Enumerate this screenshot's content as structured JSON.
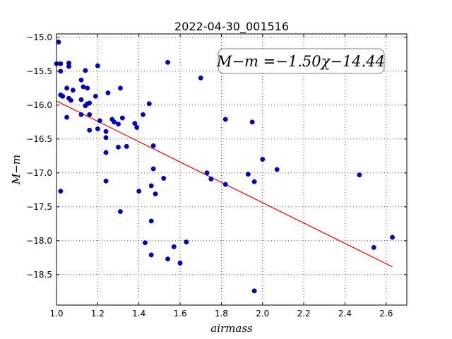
{
  "chart_data": {
    "type": "scatter",
    "title": "2022-04-30_001516",
    "xlabel": "airmass",
    "ylabel": "M−m",
    "xlim": [
      1.0,
      2.7
    ],
    "ylim": [
      -18.95,
      -14.95
    ],
    "y_inverted": true,
    "x_ticks": [
      "1.0",
      "1.2",
      "1.4",
      "1.6",
      "1.8",
      "2.0",
      "2.2",
      "2.4",
      "2.6"
    ],
    "y_ticks": [
      "−15.0",
      "−15.5",
      "−16.0",
      "−16.5",
      "−17.0",
      "−17.5",
      "−18.0",
      "−18.5"
    ],
    "grid": true,
    "annotation": "M−m =−1.50χ−14.44",
    "annotation_position": "top-right",
    "fit": {
      "slope": -1.5,
      "intercept": -14.44,
      "x_range": [
        1.0,
        2.63
      ],
      "color": "#ff0000"
    },
    "point_color": "#0000bf",
    "points": [
      [
        1.01,
        -15.07
      ],
      [
        1.0,
        -15.39
      ],
      [
        1.02,
        -15.39
      ],
      [
        1.02,
        -15.5
      ],
      [
        1.06,
        -15.38
      ],
      [
        1.06,
        -15.43
      ],
      [
        1.02,
        -15.85
      ],
      [
        1.03,
        -15.87
      ],
      [
        1.05,
        -15.75
      ],
      [
        1.06,
        -15.9
      ],
      [
        1.07,
        -15.93
      ],
      [
        1.08,
        -15.78
      ],
      [
        1.05,
        -16.18
      ],
      [
        1.02,
        -17.27
      ],
      [
        1.12,
        -15.63
      ],
      [
        1.13,
        -15.73
      ],
      [
        1.14,
        -15.49
      ],
      [
        1.15,
        -15.75
      ],
      [
        1.12,
        -15.92
      ],
      [
        1.14,
        -16.01
      ],
      [
        1.15,
        -15.98
      ],
      [
        1.16,
        -15.97
      ],
      [
        1.12,
        -16.14
      ],
      [
        1.16,
        -16.14
      ],
      [
        1.16,
        -16.37
      ],
      [
        1.19,
        -15.87
      ],
      [
        1.2,
        -15.42
      ],
      [
        1.2,
        -16.35
      ],
      [
        1.21,
        -16.23
      ],
      [
        1.25,
        -15.82
      ],
      [
        1.24,
        -16.39
      ],
      [
        1.24,
        -16.48
      ],
      [
        1.24,
        -16.7
      ],
      [
        1.24,
        -17.12
      ],
      [
        1.27,
        -16.21
      ],
      [
        1.28,
        -16.25
      ],
      [
        1.3,
        -16.28
      ],
      [
        1.31,
        -15.75
      ],
      [
        1.32,
        -16.19
      ],
      [
        1.3,
        -16.62
      ],
      [
        1.34,
        -16.61
      ],
      [
        1.31,
        -17.57
      ],
      [
        1.38,
        -16.27
      ],
      [
        1.39,
        -16.33
      ],
      [
        1.42,
        -16.14
      ],
      [
        1.45,
        -15.98
      ],
      [
        1.47,
        -16.6
      ],
      [
        1.47,
        -16.94
      ],
      [
        1.46,
        -17.19
      ],
      [
        1.48,
        -17.31
      ],
      [
        1.4,
        -17.27
      ],
      [
        1.46,
        -17.71
      ],
      [
        1.43,
        -18.03
      ],
      [
        1.46,
        -18.21
      ],
      [
        1.52,
        -17.08
      ],
      [
        1.54,
        -15.37
      ],
      [
        1.54,
        -18.27
      ],
      [
        1.57,
        -18.09
      ],
      [
        1.6,
        -18.33
      ],
      [
        1.63,
        -18.02
      ],
      [
        1.7,
        -15.6
      ],
      [
        1.73,
        -17.0
      ],
      [
        1.75,
        -17.09
      ],
      [
        1.82,
        -16.21
      ],
      [
        1.82,
        -17.17
      ],
      [
        1.93,
        -17.02
      ],
      [
        1.95,
        -16.25
      ],
      [
        1.96,
        -17.13
      ],
      [
        1.96,
        -18.74
      ],
      [
        2.0,
        -16.8
      ],
      [
        2.07,
        -16.95
      ],
      [
        2.47,
        -17.03
      ],
      [
        2.54,
        -18.1
      ],
      [
        2.63,
        -17.95
      ]
    ]
  }
}
